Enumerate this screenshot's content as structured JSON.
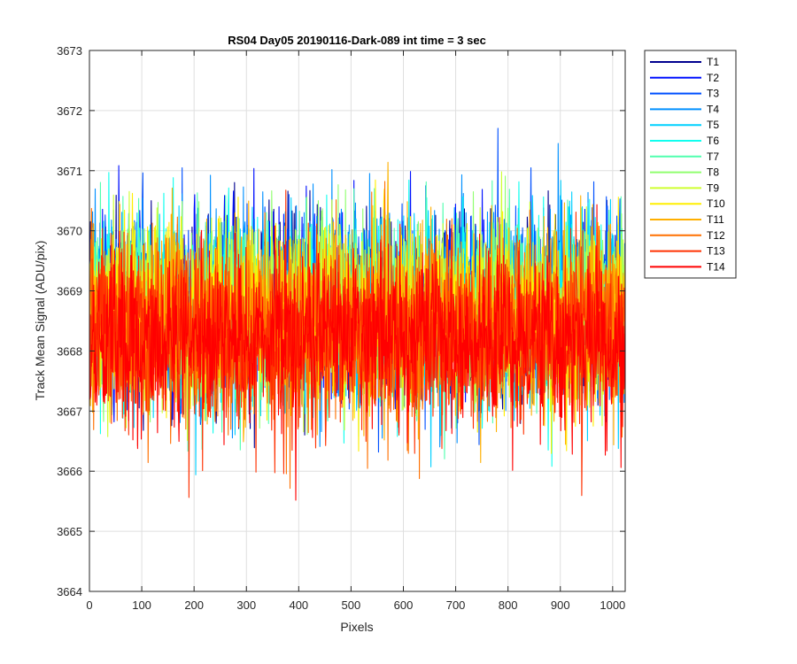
{
  "chart_data": {
    "type": "line",
    "title": "RS04 Day05 20190116-Dark-089 int time = 3 sec",
    "xlabel": "Pixels",
    "ylabel": "Track Mean Signal (ADU/pix)",
    "xlim": [
      0,
      1024
    ],
    "ylim": [
      3664,
      3673
    ],
    "xticks": [
      0,
      100,
      200,
      300,
      400,
      500,
      600,
      700,
      800,
      900,
      1000
    ],
    "yticks": [
      3664,
      3665,
      3666,
      3667,
      3668,
      3669,
      3670,
      3671,
      3672,
      3673
    ],
    "grid": true,
    "legend_position": "outside-top-right",
    "pixel_count": 1024,
    "series": [
      {
        "name": "T1",
        "color": "#00008F",
        "mean": 3668.75,
        "spread": 0.75
      },
      {
        "name": "T2",
        "color": "#0010FF",
        "mean": 3668.75,
        "spread": 0.75
      },
      {
        "name": "T3",
        "color": "#0050FF",
        "mean": 3668.75,
        "spread": 0.75
      },
      {
        "name": "T4",
        "color": "#0090FF",
        "mean": 3668.75,
        "spread": 0.75
      },
      {
        "name": "T5",
        "color": "#00D0FF",
        "mean": 3668.75,
        "spread": 0.75
      },
      {
        "name": "T6",
        "color": "#10FFEF",
        "mean": 3668.7,
        "spread": 0.75
      },
      {
        "name": "T7",
        "color": "#50FFAF",
        "mean": 3668.7,
        "spread": 0.75
      },
      {
        "name": "T8",
        "color": "#90FF6F",
        "mean": 3668.65,
        "spread": 0.75
      },
      {
        "name": "T9",
        "color": "#CFFF30",
        "mean": 3668.6,
        "spread": 0.75
      },
      {
        "name": "T10",
        "color": "#FFEF00",
        "mean": 3668.55,
        "spread": 0.75
      },
      {
        "name": "T11",
        "color": "#FFAF00",
        "mean": 3668.45,
        "spread": 0.75
      },
      {
        "name": "T12",
        "color": "#FF7000",
        "mean": 3668.35,
        "spread": 0.75
      },
      {
        "name": "T13",
        "color": "#FF3000",
        "mean": 3668.25,
        "spread": 0.75
      },
      {
        "name": "T14",
        "color": "#FF0000",
        "mean": 3668.2,
        "spread": 0.7
      }
    ]
  }
}
